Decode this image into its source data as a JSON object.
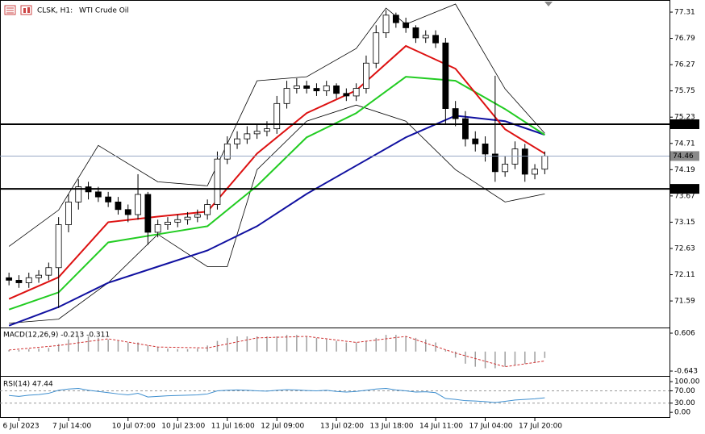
{
  "chart_data": [
    {
      "type": "candlestick",
      "symbol": "CLSK, H1:",
      "title": "WTI Crude Oil",
      "categories": [
        null,
        "6 Jul 2023",
        null,
        null,
        null,
        null,
        "7 Jul 14:00",
        null,
        null,
        null,
        null,
        null,
        "10 Jul 07:00",
        null,
        null,
        null,
        null,
        "10 Jul 23:00",
        null,
        null,
        null,
        null,
        "11 Jul 16:00",
        null,
        null,
        null,
        null,
        "12 Jul 09:00",
        null,
        null,
        null,
        null,
        null,
        "13 Jul 02:00",
        null,
        null,
        null,
        null,
        "13 Jul 18:00",
        null,
        null,
        null,
        null,
        "14 Jul 11:00",
        null,
        null,
        null,
        null,
        "17 Jul 04:00",
        null,
        null,
        null,
        null,
        "17 Jul 20:00",
        null
      ],
      "open": [
        72.05,
        72.0,
        71.95,
        72.05,
        72.1,
        72.25,
        73.1,
        73.55,
        73.85,
        73.75,
        73.65,
        73.55,
        73.4,
        73.3,
        73.7,
        72.95,
        73.1,
        73.15,
        73.2,
        73.25,
        73.3,
        73.5,
        74.4,
        74.7,
        74.8,
        74.9,
        74.95,
        75.0,
        75.5,
        75.8,
        75.85,
        75.8,
        75.75,
        75.85,
        75.7,
        75.65,
        75.8,
        76.3,
        76.9,
        77.25,
        77.1,
        77.0,
        76.8,
        76.85,
        76.7,
        75.4,
        75.2,
        74.8,
        74.7,
        74.5,
        74.15,
        74.3,
        74.6,
        74.1,
        74.2
      ],
      "high": [
        72.15,
        72.1,
        72.15,
        72.2,
        72.35,
        73.25,
        73.7,
        74.0,
        73.95,
        73.85,
        73.75,
        73.65,
        73.5,
        74.1,
        73.75,
        73.2,
        73.25,
        73.3,
        73.35,
        73.4,
        73.6,
        74.55,
        74.85,
        74.95,
        75.05,
        75.1,
        75.15,
        75.65,
        75.95,
        76.0,
        75.95,
        75.9,
        75.95,
        75.9,
        75.8,
        75.9,
        76.45,
        77.05,
        77.35,
        77.3,
        77.2,
        77.05,
        76.95,
        76.95,
        76.8,
        75.55,
        75.35,
        74.95,
        74.85,
        76.05,
        74.45,
        74.75,
        74.7,
        74.3,
        74.55
      ],
      "low": [
        71.9,
        71.85,
        71.85,
        71.95,
        72.0,
        71.45,
        72.95,
        73.4,
        73.6,
        73.55,
        73.45,
        73.3,
        73.15,
        73.2,
        72.7,
        72.85,
        73.0,
        73.05,
        73.1,
        73.15,
        73.2,
        73.4,
        74.3,
        74.6,
        74.7,
        74.8,
        74.85,
        74.9,
        75.4,
        75.7,
        75.7,
        75.65,
        75.65,
        75.6,
        75.55,
        75.55,
        75.7,
        76.2,
        76.8,
        77.0,
        76.9,
        76.7,
        76.7,
        76.6,
        75.1,
        75.05,
        74.65,
        74.55,
        74.35,
        73.95,
        74.05,
        74.2,
        73.95,
        74.0,
        74.1
      ],
      "close": [
        72.0,
        71.95,
        72.05,
        72.1,
        72.25,
        73.1,
        73.55,
        73.85,
        73.75,
        73.65,
        73.55,
        73.4,
        73.3,
        73.7,
        72.95,
        73.1,
        73.15,
        73.2,
        73.25,
        73.3,
        73.5,
        74.4,
        74.7,
        74.8,
        74.9,
        74.95,
        75.0,
        75.5,
        75.8,
        75.85,
        75.8,
        75.75,
        75.85,
        75.7,
        75.65,
        75.8,
        76.3,
        76.9,
        77.25,
        77.1,
        77.0,
        76.8,
        76.85,
        76.7,
        75.4,
        75.2,
        74.8,
        74.7,
        74.5,
        74.15,
        74.3,
        74.6,
        74.1,
        74.2,
        74.46
      ],
      "up_color": "#ffffff",
      "down_color": "#000000",
      "overlays": [
        {
          "color": "#000000",
          "width": 0.8,
          "x": [
            0,
            5,
            9,
            15,
            20,
            25,
            30,
            35,
            38,
            40,
            45,
            50,
            54
          ],
          "values": [
            72.67,
            73.39,
            74.67,
            73.95,
            73.87,
            75.95,
            76.03,
            76.59,
            77.39,
            77.07,
            77.47,
            75.79,
            74.91
          ]
        },
        {
          "color": "#000000",
          "width": 0.8,
          "x": [
            0,
            5,
            10,
            15,
            20,
            22,
            25,
            30,
            35,
            40,
            45,
            50,
            54
          ],
          "values": [
            71.15,
            71.23,
            71.95,
            72.91,
            72.27,
            72.27,
            74.19,
            75.15,
            75.47,
            75.15,
            74.19,
            73.55,
            73.71
          ]
        },
        {
          "color": "#1010a0",
          "width": 2,
          "x": [
            0,
            5,
            10,
            15,
            20,
            25,
            30,
            35,
            40,
            45,
            50,
            54
          ],
          "values": [
            71.1,
            71.47,
            71.95,
            72.27,
            72.59,
            73.07,
            73.71,
            74.27,
            74.83,
            75.26,
            75.15,
            74.88
          ]
        },
        {
          "color": "#22cc22",
          "width": 2,
          "x": [
            0,
            5,
            10,
            15,
            20,
            25,
            30,
            35,
            40,
            45,
            50,
            54
          ],
          "values": [
            71.42,
            71.76,
            72.75,
            72.91,
            73.07,
            73.87,
            74.83,
            75.31,
            76.03,
            75.95,
            75.39,
            74.88
          ]
        },
        {
          "color": "#dd1111",
          "width": 2,
          "x": [
            0,
            5,
            10,
            15,
            20,
            25,
            30,
            35,
            40,
            45,
            50,
            54
          ],
          "values": [
            71.63,
            72.06,
            73.15,
            73.26,
            73.36,
            74.51,
            75.31,
            75.76,
            76.64,
            76.19,
            74.99,
            74.51
          ]
        }
      ],
      "levels": [
        75.09,
        73.81
      ],
      "current_price": 74.46,
      "ylim": [
        71.08,
        77.55
      ],
      "yticks": [
        77.31,
        76.79,
        76.27,
        75.75,
        75.23,
        74.71,
        74.19,
        73.67,
        73.15,
        72.63,
        72.11,
        71.59
      ]
    },
    {
      "type": "macd",
      "label": "MACD(12,26,9) -0.213 -0.311",
      "color": "#a0a0a0",
      "values": [
        0.05,
        0.05,
        0.08,
        0.1,
        0.12,
        0.25,
        0.4,
        0.5,
        0.5,
        0.45,
        0.4,
        0.35,
        0.3,
        0.3,
        0.2,
        0.15,
        0.1,
        0.08,
        0.08,
        0.1,
        0.2,
        0.35,
        0.45,
        0.5,
        0.5,
        0.5,
        0.5,
        0.5,
        0.55,
        0.55,
        0.5,
        0.45,
        0.4,
        0.35,
        0.3,
        0.3,
        0.35,
        0.45,
        0.55,
        0.55,
        0.5,
        0.45,
        0.4,
        0.3,
        0.05,
        -0.2,
        -0.4,
        -0.5,
        -0.55,
        -0.55,
        -0.5,
        -0.45,
        -0.4,
        -0.35,
        -0.213
      ],
      "signal": {
        "color": "#d03030",
        "x": [
          0,
          5,
          10,
          15,
          20,
          25,
          30,
          35,
          40,
          45,
          50,
          54
        ],
        "values": [
          0.05,
          0.2,
          0.42,
          0.15,
          0.12,
          0.45,
          0.5,
          0.3,
          0.5,
          -0.05,
          -0.5,
          -0.311
        ]
      },
      "ylim": [
        -0.776,
        0.739
      ],
      "yticks": [
        0.606,
        -0.643
      ]
    },
    {
      "type": "line",
      "label": "RSI(14) 47.44",
      "color": "#3f8fcf",
      "values": [
        55,
        52,
        56,
        58,
        62,
        72,
        76,
        78,
        72,
        68,
        64,
        60,
        57,
        62,
        50,
        52,
        54,
        55,
        56,
        57,
        60,
        70,
        72,
        73,
        72,
        70,
        69,
        72,
        74,
        73,
        71,
        70,
        72,
        68,
        66,
        68,
        72,
        76,
        78,
        73,
        70,
        66,
        67,
        64,
        45,
        42,
        38,
        37,
        35,
        32,
        36,
        40,
        42,
        44,
        47.44
      ],
      "levels": [
        70,
        30
      ],
      "ylim": [
        -18,
        116
      ],
      "yticks": [
        {
          "value": 100,
          "label": "100.00"
        },
        {
          "value": 70,
          "label": "70.00"
        },
        {
          "value": 30,
          "label": "30.00"
        },
        {
          "value": 0,
          "label": "0.00"
        }
      ]
    }
  ]
}
